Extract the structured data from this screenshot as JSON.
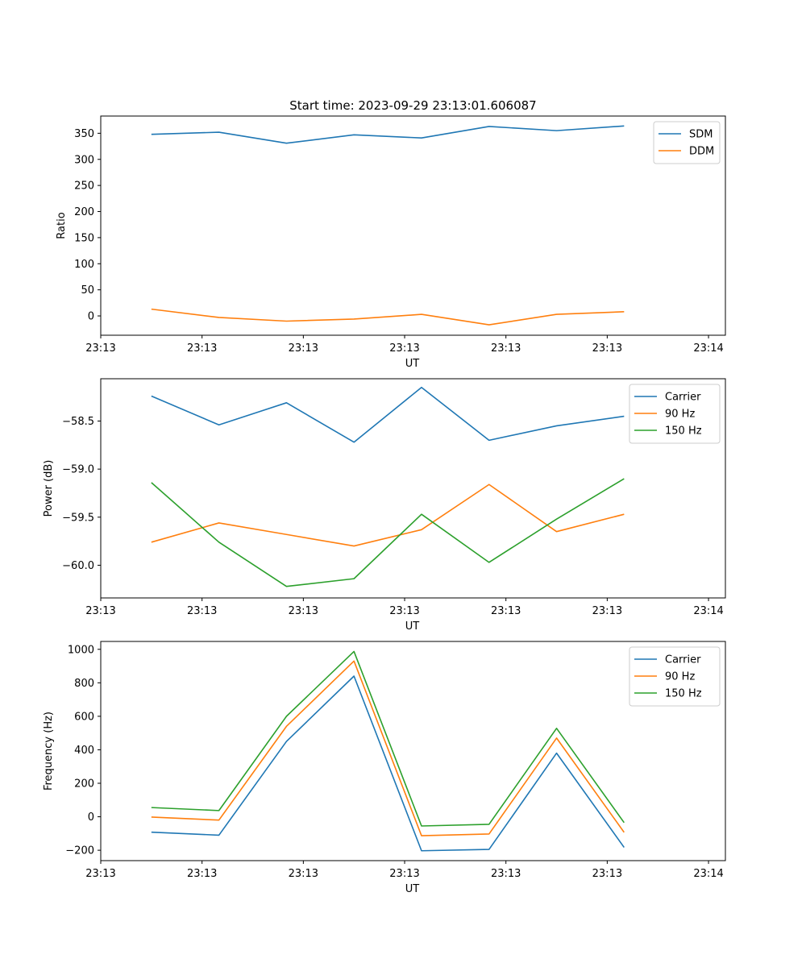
{
  "chart_data": [
    {
      "type": "line",
      "title": "Start time: 2023-09-29 23:13:01.606087",
      "xlabel": "UT",
      "ylabel": "Ratio",
      "x": [
        0,
        1,
        2,
        3,
        4,
        5,
        6,
        7
      ],
      "xticks": [
        "23:13",
        "23:13",
        "23:13",
        "23:13",
        "23:13",
        "23:13",
        "23:14"
      ],
      "xlim": [
        -0.75,
        8.5
      ],
      "ylim": [
        -37,
        383
      ],
      "yticks": [
        0,
        50,
        100,
        150,
        200,
        250,
        300,
        350
      ],
      "legend": "upper right",
      "series": [
        {
          "name": "SDM",
          "color": "#1f77b4",
          "values": [
            348,
            352,
            331,
            347,
            341,
            363,
            355,
            364
          ]
        },
        {
          "name": "DDM",
          "color": "#ff7f0e",
          "values": [
            13,
            -3,
            -10,
            -6,
            3,
            -17,
            3,
            8
          ]
        }
      ]
    },
    {
      "type": "line",
      "title": "",
      "xlabel": "UT",
      "ylabel": "Power (dB)",
      "x": [
        0,
        1,
        2,
        3,
        4,
        5,
        6,
        7
      ],
      "xticks": [
        "23:13",
        "23:13",
        "23:13",
        "23:13",
        "23:13",
        "23:13",
        "23:14"
      ],
      "xlim": [
        -0.75,
        8.5
      ],
      "ylim": [
        -60.34,
        -58.06
      ],
      "yticks": [
        -60.0,
        -59.5,
        -59.0,
        -58.5
      ],
      "ytick_labels": [
        "−60.0",
        "−59.5",
        "−59.0",
        "−58.5"
      ],
      "legend": "upper right",
      "series": [
        {
          "name": "Carrier",
          "color": "#1f77b4",
          "values": [
            -58.24,
            -58.54,
            -58.31,
            -58.72,
            -58.15,
            -58.7,
            -58.55,
            -58.45
          ]
        },
        {
          "name": "90 Hz",
          "color": "#ff7f0e",
          "values": [
            -59.76,
            -59.56,
            -59.68,
            -59.8,
            -59.63,
            -59.16,
            -59.65,
            -59.47
          ]
        },
        {
          "name": "150 Hz",
          "color": "#2ca02c",
          "values": [
            -59.14,
            -59.76,
            -60.22,
            -60.14,
            -59.47,
            -59.97,
            -59.52,
            -59.1
          ]
        }
      ]
    },
    {
      "type": "line",
      "title": "",
      "xlabel": "UT",
      "ylabel": "Frequency (Hz)",
      "x": [
        0,
        1,
        2,
        3,
        4,
        5,
        6,
        7
      ],
      "xticks": [
        "23:13",
        "23:13",
        "23:13",
        "23:13",
        "23:13",
        "23:13",
        "23:14"
      ],
      "xlim": [
        -0.75,
        8.5
      ],
      "ylim": [
        -262,
        1047
      ],
      "yticks": [
        -200,
        0,
        200,
        400,
        600,
        800,
        1000
      ],
      "ytick_labels": [
        "−200",
        "0",
        "200",
        "400",
        "600",
        "800",
        "1000"
      ],
      "legend": "upper right",
      "series": [
        {
          "name": "Carrier",
          "color": "#1f77b4",
          "values": [
            -92,
            -110,
            450,
            840,
            -203,
            -195,
            380,
            -183
          ]
        },
        {
          "name": "90 Hz",
          "color": "#ff7f0e",
          "values": [
            -2,
            -20,
            540,
            930,
            -113,
            -103,
            470,
            -93
          ]
        },
        {
          "name": "150 Hz",
          "color": "#2ca02c",
          "values": [
            55,
            37,
            600,
            987,
            -55,
            -45,
            528,
            -35
          ]
        }
      ]
    }
  ]
}
